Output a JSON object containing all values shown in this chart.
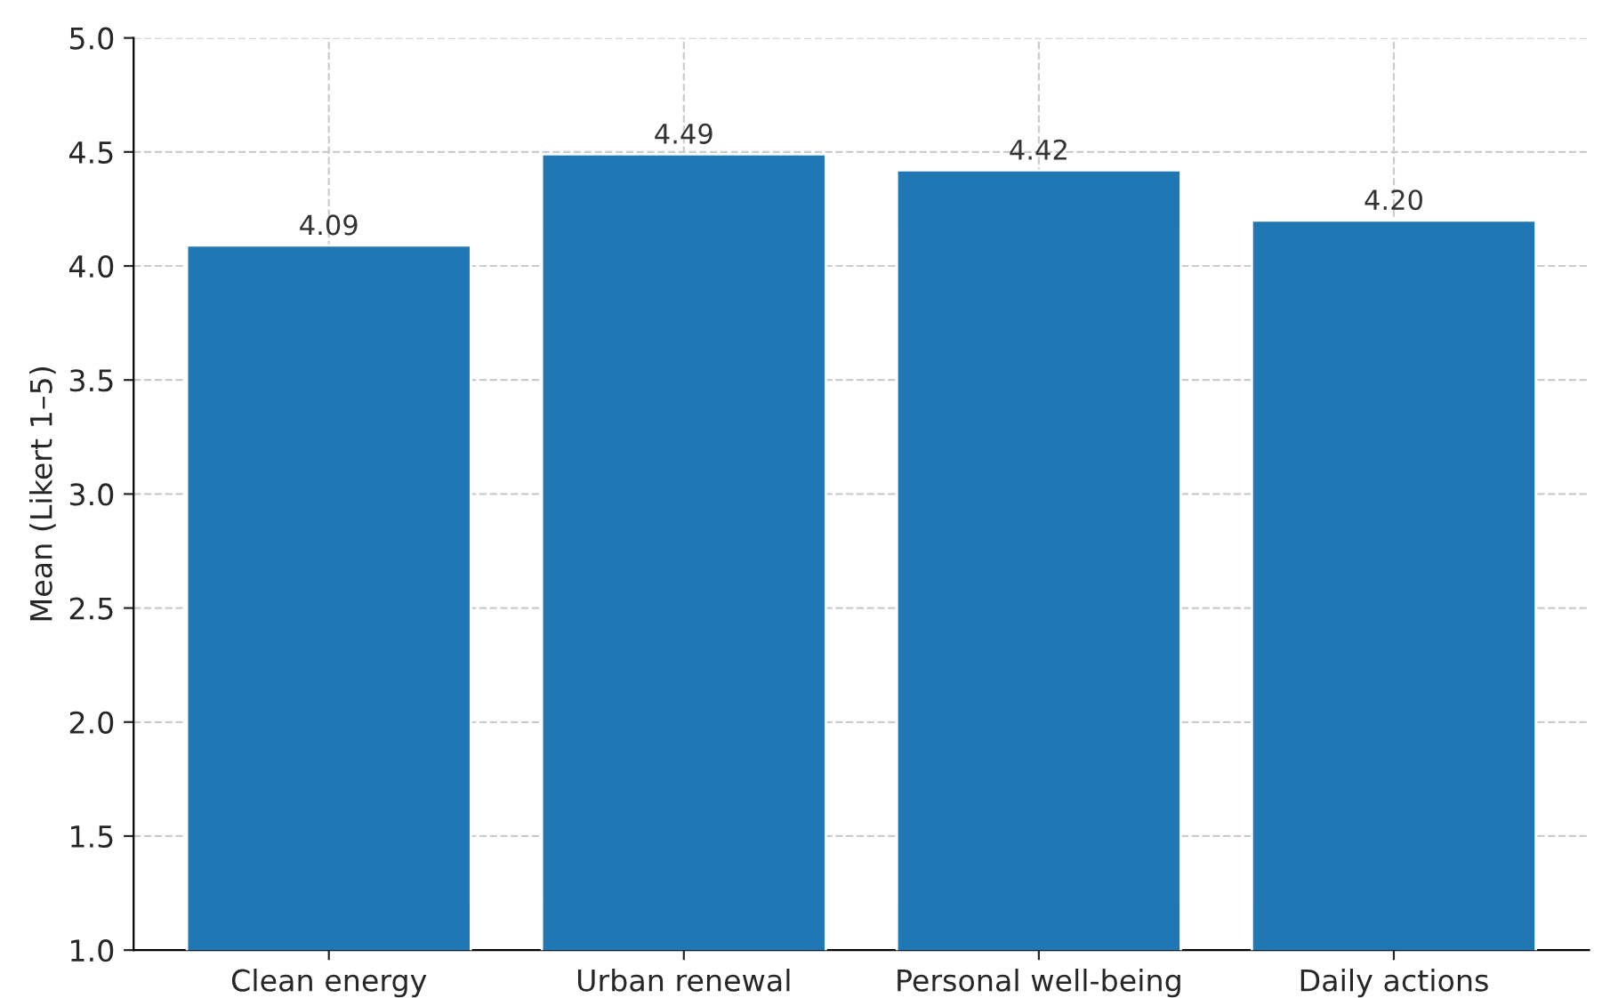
{
  "chart_data": {
    "type": "bar",
    "ylabel": "Mean (Likert 1–5)",
    "categories": [
      "Clean energy",
      "Urban renewal",
      "Personal well-being",
      "Daily actions"
    ],
    "values": [
      4.09,
      4.49,
      4.42,
      4.2
    ],
    "value_labels": [
      "4.09",
      "4.49",
      "4.42",
      "4.20"
    ],
    "color": "#1f77b4",
    "ylim": [
      1.0,
      5.0
    ],
    "yticks": [
      {
        "value": 1.0,
        "label": "1.0"
      },
      {
        "value": 1.5,
        "label": "1.5"
      },
      {
        "value": 2.0,
        "label": "2.0"
      },
      {
        "value": 2.5,
        "label": "2.5"
      },
      {
        "value": 3.0,
        "label": "3.0"
      },
      {
        "value": 3.5,
        "label": "3.5"
      },
      {
        "value": 4.0,
        "label": "4.0"
      },
      {
        "value": 4.5,
        "label": "4.5"
      },
      {
        "value": 5.0,
        "label": "5.0"
      }
    ],
    "grid": true
  }
}
